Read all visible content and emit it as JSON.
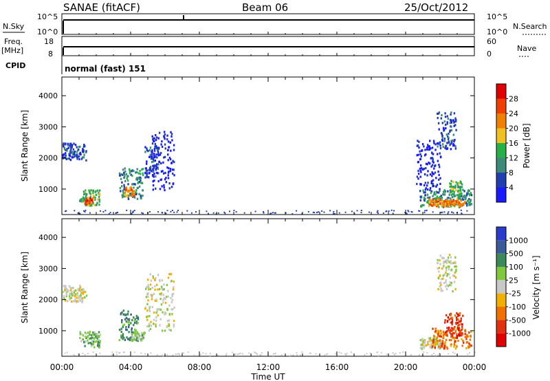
{
  "header": {
    "site": "SANAE (fitACF)",
    "beam": "Beam 06",
    "date": "25/Oct/2012"
  },
  "strip_labels": {
    "nsky": "N.Sky",
    "nsearch": "N.Search",
    "freq_line1": "Freq.",
    "freq_line2": "[MHz]",
    "nave": "Nave",
    "cpid": "CPID",
    "cpid_value": "normal (fast) 151"
  },
  "strip_ticks": {
    "nsky_left": [
      "10^5",
      "10^0"
    ],
    "nsearch_right": [
      "10^5",
      "10^0"
    ],
    "freq_left": [
      "18",
      "8"
    ],
    "nave_right": [
      "60",
      "0"
    ]
  },
  "colors": {
    "power": [
      "#1a1aff",
      "#2040b0",
      "#3c8a7a",
      "#28b048",
      "#f0c020",
      "#f08000",
      "#f04000",
      "#e00000"
    ],
    "velocity": [
      "#2a3ccc",
      "#3a5a9a",
      "#3a8a5a",
      "#80c840",
      "#c8c8c8",
      "#f0b000",
      "#f07000",
      "#e03010",
      "#e00000"
    ]
  },
  "chart_data": [
    {
      "type": "heatmap",
      "name": "power",
      "ylabel": "Slant Range [km]",
      "xlabel": "",
      "xlim": [
        "00:00",
        "24:00"
      ],
      "ylim": [
        180,
        4600
      ],
      "yticks": [
        1000,
        2000,
        3000,
        4000
      ],
      "colorbar_label": "Power [dB]",
      "colorbar_ticks": [
        4,
        8,
        12,
        16,
        20,
        24,
        28
      ],
      "colorbar_range": [
        0,
        32
      ],
      "clusters": [
        {
          "t": [
            0.0,
            1.4
          ],
          "r": [
            1950,
            2500
          ],
          "level": 1
        },
        {
          "t": [
            1.0,
            2.2
          ],
          "r": [
            500,
            1000
          ],
          "level": 3
        },
        {
          "t": [
            1.3,
            1.8
          ],
          "r": [
            550,
            750
          ],
          "level": 6
        },
        {
          "t": [
            3.3,
            4.7
          ],
          "r": [
            700,
            1700
          ],
          "level": 2
        },
        {
          "t": [
            3.6,
            4.2
          ],
          "r": [
            800,
            1100
          ],
          "level": 5
        },
        {
          "t": [
            4.8,
            5.6
          ],
          "r": [
            1400,
            2400
          ],
          "level": 1
        },
        {
          "t": [
            5.2,
            6.5
          ],
          "r": [
            1000,
            2900
          ],
          "level": 0
        },
        {
          "t": [
            20.8,
            23.8
          ],
          "r": [
            450,
            1000
          ],
          "level": 2
        },
        {
          "t": [
            21.3,
            23.4
          ],
          "r": [
            480,
            700
          ],
          "level": 5
        },
        {
          "t": [
            22.5,
            23.3
          ],
          "r": [
            700,
            1300
          ],
          "level": 3
        },
        {
          "t": [
            21.8,
            22.9
          ],
          "r": [
            2300,
            3500
          ],
          "level": 1
        },
        {
          "t": [
            20.6,
            22.0
          ],
          "r": [
            1000,
            2600
          ],
          "level": 0
        }
      ]
    },
    {
      "type": "heatmap",
      "name": "velocity",
      "ylabel": "Slant Range [km]",
      "xlabel": "Time UT",
      "xlim": [
        "00:00",
        "24:00"
      ],
      "ylim": [
        180,
        4600
      ],
      "yticks": [
        1000,
        2000,
        3000,
        4000
      ],
      "xticks": [
        "00:00",
        "04:00",
        "08:00",
        "12:00",
        "16:00",
        "20:00",
        "00:00"
      ],
      "colorbar_label": "Velocity [m s⁻¹]",
      "colorbar_ticks": [
        "1000",
        "500",
        "100",
        "25",
        "-25",
        "-100",
        "-500",
        "-1000"
      ],
      "clusters": [
        {
          "t": [
            0.0,
            1.4
          ],
          "r": [
            1950,
            2500
          ],
          "level": 4
        },
        {
          "t": [
            1.0,
            2.2
          ],
          "r": [
            500,
            1000
          ],
          "level": 3
        },
        {
          "t": [
            3.3,
            4.4
          ],
          "r": [
            700,
            1700
          ],
          "level": 2
        },
        {
          "t": [
            4.0,
            4.8
          ],
          "r": [
            700,
            1000
          ],
          "level": 3
        },
        {
          "t": [
            4.8,
            6.5
          ],
          "r": [
            1000,
            2900
          ],
          "level": 4
        },
        {
          "t": [
            20.8,
            22.0
          ],
          "r": [
            450,
            800
          ],
          "level": 4
        },
        {
          "t": [
            21.5,
            23.8
          ],
          "r": [
            450,
            1100
          ],
          "level": 6
        },
        {
          "t": [
            22.2,
            23.3
          ],
          "r": [
            800,
            1600
          ],
          "level": 7
        },
        {
          "t": [
            21.8,
            22.9
          ],
          "r": [
            2300,
            3500
          ],
          "level": 4
        }
      ]
    }
  ]
}
